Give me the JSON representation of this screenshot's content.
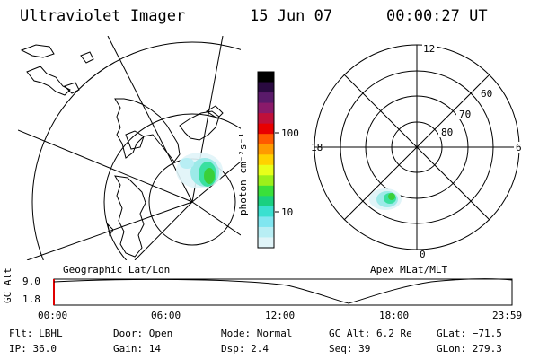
{
  "header": {
    "title": "Ultraviolet Imager",
    "date": "15 Jun 07",
    "time": "00:00:27 UT"
  },
  "geo_panel": {
    "label": "Geographic Lat/Lon"
  },
  "mag_panel": {
    "label": "Apex MLat/MLT",
    "mlt_labels": {
      "top": "12",
      "left": "18",
      "right": "6",
      "bottom": "0"
    },
    "lat_labels": [
      "60",
      "70",
      "80"
    ]
  },
  "colorbar": {
    "unit_label": "photon cm⁻²s⁻¹",
    "ticks": [
      "100",
      "10"
    ],
    "colors_top_to_bottom": [
      "#000000",
      "#2a0a40",
      "#5a1a6a",
      "#8a1a6a",
      "#c0103a",
      "#e80000",
      "#ff5a00",
      "#ff9a00",
      "#ffd200",
      "#e8ff1a",
      "#9cf01a",
      "#3ae03a",
      "#1ad080",
      "#3ae0d0",
      "#80e6f0",
      "#b8eef4",
      "#e0f4f8"
    ]
  },
  "timeline": {
    "y_label": "GC Alt",
    "y_ticks": [
      "9.0",
      "1.8"
    ],
    "x_ticks": [
      "00:00",
      "06:00",
      "12:00",
      "18:00",
      "23:59"
    ]
  },
  "info": {
    "col1": [
      "Flt: LBHL",
      "IP: 36.0"
    ],
    "col2": [
      "Door: Open",
      "Gain: 14"
    ],
    "col3": [
      "Mode: Normal",
      "Dsp:    2.4"
    ],
    "col4": [
      "GC Alt: 6.2 Re",
      "Seq: 39"
    ],
    "col5": [
      "GLat: −71.5",
      "GLon: 279.3"
    ]
  }
}
